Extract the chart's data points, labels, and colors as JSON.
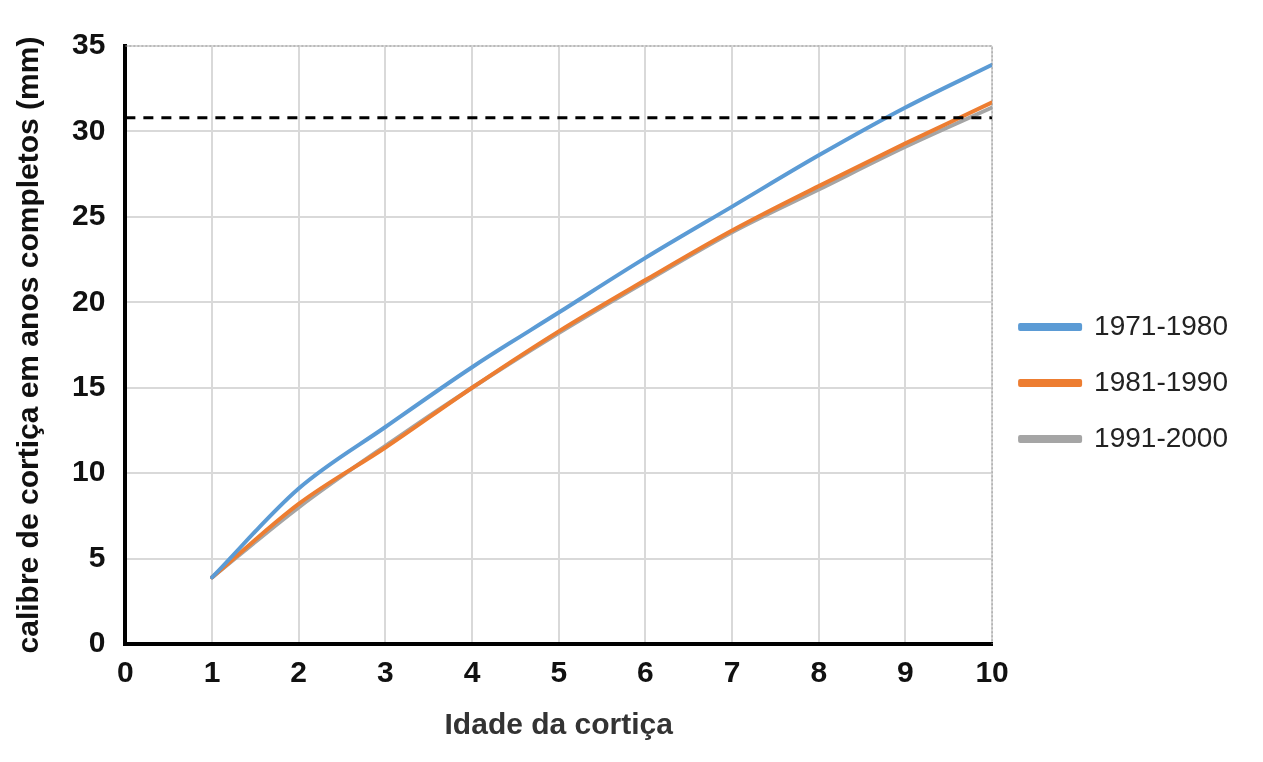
{
  "chart_data": {
    "type": "line",
    "xlabel": "Idade da cortiça",
    "ylabel": "calibre de cortiça em anos completos (mm)",
    "x": [
      1,
      2,
      3,
      4,
      5,
      6,
      7,
      8,
      9,
      10
    ],
    "series": [
      {
        "name": "1971-1980",
        "color": "#5b9bd5",
        "values": [
          3.9,
          9.1,
          12.7,
          16.2,
          19.4,
          22.6,
          25.6,
          28.6,
          31.4,
          33.9
        ]
      },
      {
        "name": "1981-1990",
        "color": "#ed7d31",
        "values": [
          3.9,
          8.2,
          11.5,
          15.0,
          18.3,
          21.3,
          24.2,
          26.8,
          29.3,
          31.7
        ]
      },
      {
        "name": "1991-2000",
        "color": "#a5a5a5",
        "values": [
          3.9,
          8.0,
          11.6,
          15.0,
          18.2,
          21.2,
          24.1,
          26.6,
          29.1,
          31.4
        ]
      }
    ],
    "xlim": [
      0,
      10
    ],
    "xticks": [
      0,
      1,
      2,
      3,
      4,
      5,
      6,
      7,
      8,
      9,
      10
    ],
    "ylim": [
      0,
      35
    ],
    "yticks": [
      0,
      5,
      10,
      15,
      20,
      25,
      30,
      35
    ],
    "ref_lines": [
      {
        "axis": "y",
        "value": 30.8,
        "color": "#000000",
        "line_style": "dashed"
      }
    ],
    "grid": true,
    "legend": "right",
    "marker": "none",
    "line_style": "solid"
  }
}
